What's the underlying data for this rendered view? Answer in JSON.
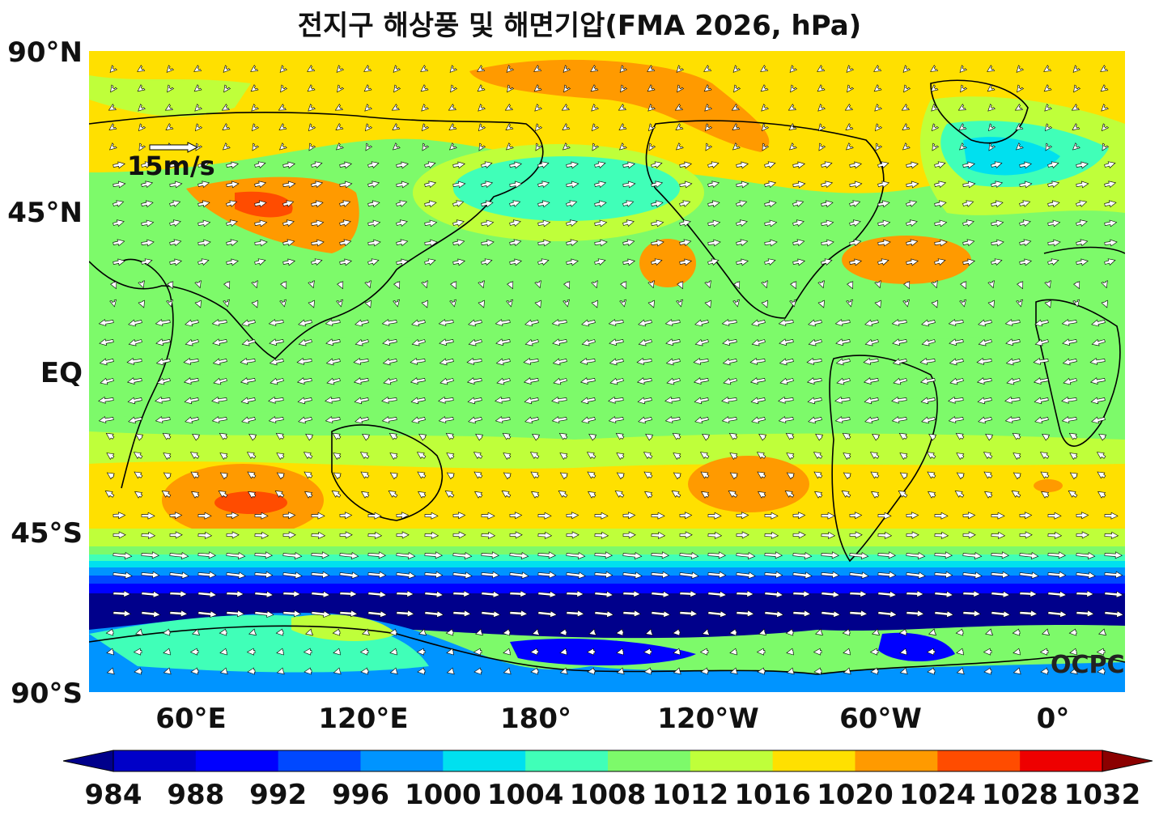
{
  "title": "전지구 해상풍 및 해면기압(FMA 2026, hPa)",
  "map": {
    "lat_labels": [
      "90°N",
      "45°N",
      "EQ",
      "45°S",
      "90°S"
    ],
    "lon_labels": [
      "60°E",
      "120°E",
      "180°",
      "120°W",
      "60°W",
      "0°"
    ],
    "reference_vector_label": "15m/s",
    "watermark": "OCPC",
    "background_color": "#7dfa6a"
  },
  "colorbar": {
    "ticks": [
      "984",
      "988",
      "992",
      "996",
      "1000",
      "1004",
      "1008",
      "1012",
      "1016",
      "1020",
      "1024",
      "1028",
      "1032"
    ],
    "colors": [
      "#00008b",
      "#0000c8",
      "#0000ff",
      "#0048ff",
      "#0094ff",
      "#00e0ef",
      "#40ffb8",
      "#7dfa6a",
      "#bfff3a",
      "#ffe000",
      "#ff9a00",
      "#ff4c00",
      "#ee0000",
      "#8b0000"
    ]
  }
}
